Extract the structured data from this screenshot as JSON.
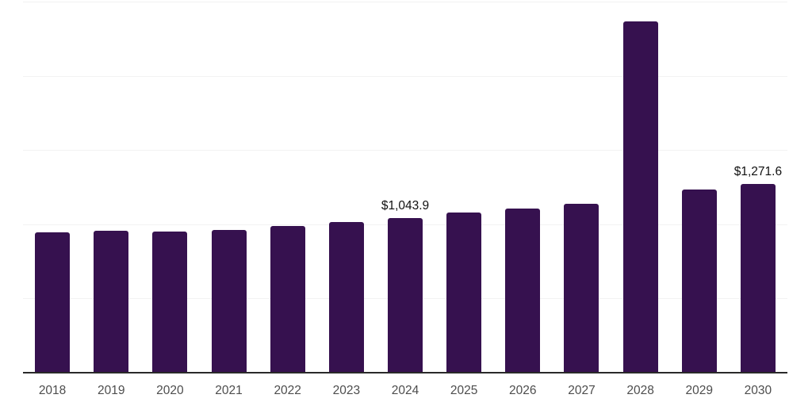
{
  "chart_data": {
    "type": "bar",
    "title": "",
    "xlabel": "",
    "ylabel": "",
    "categories": [
      "2018",
      "2019",
      "2020",
      "2021",
      "2022",
      "2023",
      "2024",
      "2025",
      "2026",
      "2027",
      "2028",
      "2029",
      "2030"
    ],
    "values": [
      944,
      956,
      952,
      961,
      988,
      1016,
      1043.9,
      1077,
      1104,
      1136,
      2368,
      1233,
      1271.6
    ],
    "value_labels": [
      "",
      "",
      "",
      "",
      "",
      "",
      "$1,043.9",
      "",
      "",
      "",
      "",
      "",
      "$1,271.6"
    ],
    "ylim": [
      0,
      2500
    ],
    "gridline_values": [
      500,
      1000,
      1500,
      2000,
      2500
    ],
    "grid": "horizontal-only",
    "legend": "none",
    "colors": {
      "bar": "#36114f",
      "axis_line": "#2a2a2a",
      "gridline": "#f2f2f2",
      "tick_label": "#4d4d4d",
      "value_label": "#111111",
      "background": "#ffffff"
    }
  }
}
